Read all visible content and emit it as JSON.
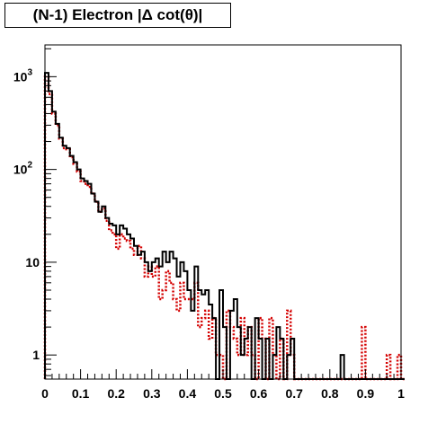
{
  "chart_data": {
    "type": "histogram",
    "title": "(N-1) Electron |Δ cot(θ)|",
    "xlabel": "",
    "ylabel": "",
    "x_range": [
      0,
      1
    ],
    "y_scale": "log",
    "y_range": [
      0.55,
      2200
    ],
    "grid": false,
    "legend": "none",
    "bin_width": 0.01,
    "x_ticks": [
      "0",
      "0.1",
      "0.2",
      "0.3",
      "0.4",
      "0.5",
      "0.6",
      "0.7",
      "0.8",
      "0.9",
      "1"
    ],
    "x_tick_values": [
      0,
      0.1,
      0.2,
      0.3,
      0.4,
      0.5,
      0.6,
      0.7,
      0.8,
      0.9,
      1.0
    ],
    "y_ticks": [
      {
        "value": 1,
        "base": "1",
        "exp": ""
      },
      {
        "value": 10,
        "base": "10",
        "exp": ""
      },
      {
        "value": 100,
        "base": "10",
        "exp": "2"
      },
      {
        "value": 1000,
        "base": "10",
        "exp": "3"
      }
    ],
    "series": [
      {
        "color": "#000000",
        "style": "solid",
        "values": [
          1100,
          700,
          420,
          310,
          220,
          180,
          170,
          140,
          120,
          100,
          80,
          75,
          70,
          55,
          45,
          35,
          40,
          30,
          26,
          25,
          20,
          25,
          23,
          20,
          18,
          15,
          12,
          13,
          10,
          8,
          10,
          11,
          9,
          13,
          10,
          13,
          11,
          7,
          10,
          8,
          5,
          3,
          9,
          5,
          4.5,
          5,
          3.5,
          2.5,
          0,
          5,
          2,
          0,
          3,
          4,
          2,
          1,
          1.5,
          2,
          0,
          2.5,
          1.5,
          0,
          1.5,
          0,
          1,
          2,
          1.5,
          0,
          1,
          1.5,
          0,
          0,
          0,
          0,
          0,
          0,
          0,
          0,
          0,
          0,
          0,
          0,
          0,
          1,
          0,
          0,
          0,
          0,
          0,
          0,
          0,
          0,
          0,
          0,
          0,
          0,
          0,
          0,
          0,
          0,
          0
        ]
      },
      {
        "color": "#d40000",
        "style": "dotted",
        "values": [
          1000,
          650,
          400,
          300,
          215,
          170,
          165,
          135,
          115,
          95,
          75,
          70,
          65,
          55,
          45,
          35,
          38,
          28,
          22,
          20,
          14,
          20,
          18,
          17,
          14,
          12,
          15,
          11,
          7,
          9,
          7,
          9,
          4,
          5,
          8,
          6,
          4,
          3,
          6,
          4,
          4,
          4,
          6,
          2,
          2.5,
          3,
          1.5,
          2.5,
          1,
          1,
          0,
          3,
          2,
          1.5,
          1,
          2.5,
          1,
          2,
          1,
          0,
          2.5,
          1.5,
          0,
          2.5,
          1,
          0,
          1.5,
          0,
          3,
          1,
          0,
          0,
          0,
          0,
          0,
          0,
          0,
          0,
          0,
          0,
          0,
          0,
          0,
          0,
          0,
          0,
          0,
          0,
          0,
          2,
          0,
          0,
          0,
          0,
          0,
          0,
          1,
          0,
          0,
          1,
          0
        ]
      }
    ]
  }
}
